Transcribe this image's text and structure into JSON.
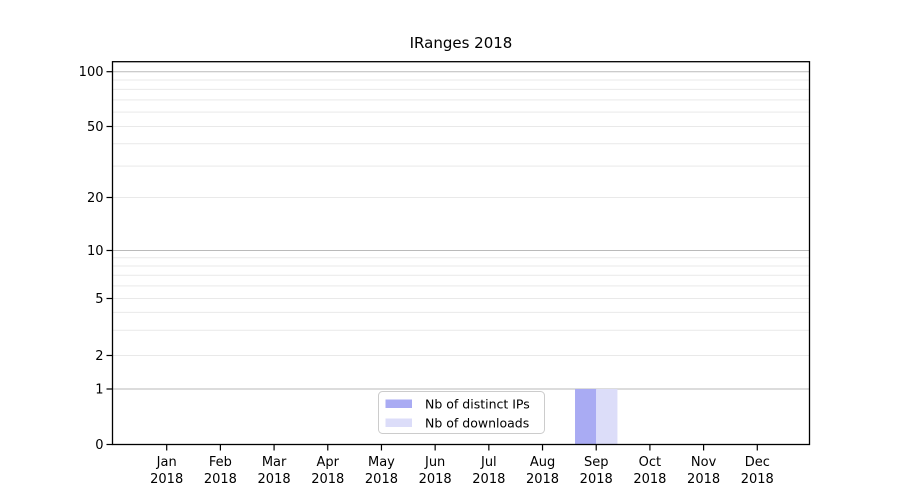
{
  "chart_data": {
    "type": "bar",
    "title": "IRanges 2018",
    "year_label": "2018",
    "x_categories": [
      "Jan",
      "Feb",
      "Mar",
      "Apr",
      "May",
      "Jun",
      "Jul",
      "Aug",
      "Sep",
      "Oct",
      "Nov",
      "Dec"
    ],
    "series": [
      {
        "name": "Nb of distinct IPs",
        "color": "#a9abf3",
        "values": [
          0,
          0,
          0,
          0,
          0,
          0,
          0,
          0,
          1,
          0,
          0,
          0
        ]
      },
      {
        "name": "Nb of downloads",
        "color": "#dcddf9",
        "values": [
          0,
          0,
          0,
          0,
          0,
          0,
          0,
          0,
          1,
          0,
          0,
          0
        ]
      }
    ],
    "y_axis": {
      "labeled_ticks": [
        0,
        1,
        2,
        5,
        10,
        20,
        50,
        100
      ],
      "major_gridline_ticks": [
        1,
        10,
        100
      ],
      "minor_gridlines": [
        3,
        4,
        6,
        7,
        8,
        9,
        30,
        40,
        60,
        70,
        80,
        90
      ],
      "scale": "symlog",
      "ylim": [
        0,
        115
      ]
    },
    "legend": {
      "position": "lower center"
    },
    "grid": "horizontal"
  },
  "colors": {
    "background": "#ffffff",
    "axis": "#000000",
    "major_gridline": "#bababa",
    "minor_gridline": "#e9e9e9",
    "tick_label": "#000000",
    "legend_border": "#cccccc"
  }
}
